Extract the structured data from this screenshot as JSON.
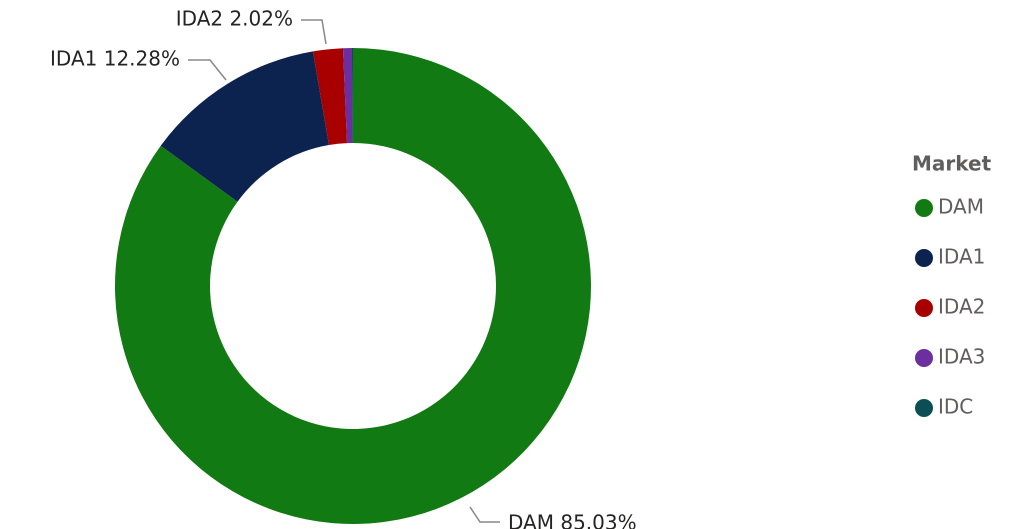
{
  "chart_data": {
    "type": "donut",
    "categories": [
      "DAM",
      "IDA1",
      "IDA2",
      "IDA3",
      "IDC"
    ],
    "values": [
      85.03,
      12.28,
      2.02,
      0.6,
      0.07
    ],
    "value_labels": [
      "DAM 85.03%",
      "IDA1 12.28%",
      "IDA2 2.02%",
      null,
      null
    ],
    "colors": [
      "#127a12",
      "#0c2350",
      "#a80000",
      "#6b2fa0",
      "#0b4f55"
    ],
    "legend_title": "Market",
    "legend": "right"
  }
}
